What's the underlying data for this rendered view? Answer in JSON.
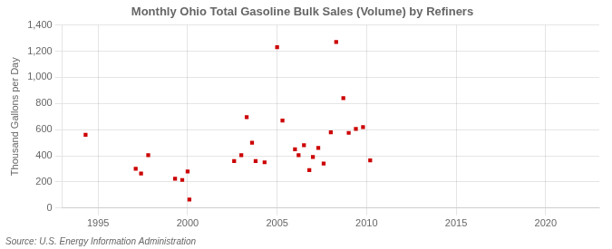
{
  "chart_data": {
    "type": "scatter",
    "title": "Monthly Ohio Total Gasoline Bulk Sales (Volume) by Refiners",
    "ylabel": "Thousand Gallons per Day",
    "annotations": [
      "Source: U.S. Energy Information Administration"
    ],
    "x": [
      1994.3,
      1997.1,
      1997.4,
      1997.8,
      1999.3,
      1999.7,
      2000.0,
      2000.1,
      2002.6,
      2003.0,
      2003.3,
      2003.6,
      2003.8,
      2004.3,
      2005.0,
      2005.3,
      2006.0,
      2006.2,
      2006.5,
      2006.8,
      2007.0,
      2007.3,
      2007.6,
      2008.0,
      2008.3,
      2008.7,
      2009.0,
      2009.4,
      2009.8,
      2010.2
    ],
    "values": [
      560,
      300,
      265,
      405,
      225,
      215,
      280,
      65,
      360,
      405,
      695,
      500,
      360,
      350,
      1230,
      670,
      450,
      405,
      480,
      290,
      390,
      460,
      340,
      580,
      1270,
      840,
      575,
      605,
      620,
      365
    ],
    "color": "#cc0000",
    "marker": "square",
    "xlim": [
      1993,
      2023
    ],
    "xticks": [
      1995,
      2000,
      2005,
      2010,
      2015,
      2020
    ],
    "ylim": [
      0,
      1400
    ],
    "yticks": [
      0,
      200,
      400,
      600,
      800,
      {
        "value": 1000,
        "label": "1,000"
      },
      {
        "value": 1200,
        "label": "1,200"
      },
      {
        "value": 1400,
        "label": "1,400"
      }
    ],
    "grid": true
  }
}
